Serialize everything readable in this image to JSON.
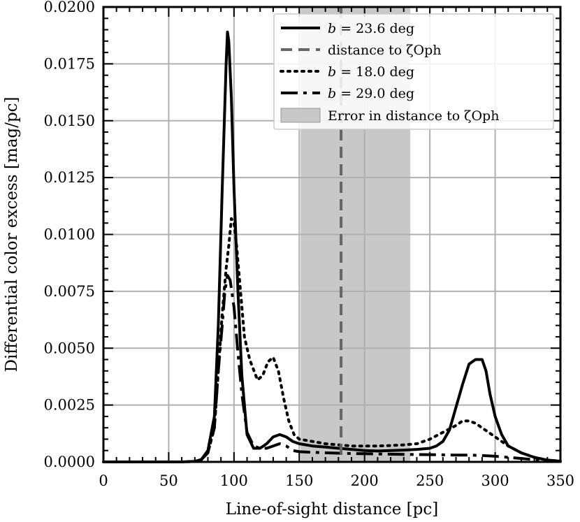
{
  "chart_data": {
    "type": "line",
    "xlabel": "Line-of-sight distance [pc]",
    "ylabel": "Differential color excess [mag/pc]",
    "xlim": [
      0,
      350
    ],
    "ylim": [
      0,
      0.02
    ],
    "xticks": [
      0,
      50,
      100,
      150,
      200,
      250,
      300,
      350
    ],
    "xtick_labels": [
      "0",
      "50",
      "100",
      "150",
      "200",
      "250",
      "300",
      "350"
    ],
    "yticks": [
      0,
      0.0025,
      0.005,
      0.0075,
      0.01,
      0.0125,
      0.015,
      0.0175,
      0.02
    ],
    "ytick_labels": [
      "0.0000",
      "0.0025",
      "0.0050",
      "0.0075",
      "0.0100",
      "0.0125",
      "0.0150",
      "0.0175",
      "0.0200"
    ],
    "grid": true,
    "legend_position": "top-right",
    "series": [
      {
        "name": "b = 23.6 deg",
        "legend": {
          "prefix": "b",
          "value": " = 23.6",
          "unit": " deg"
        },
        "style": "solid",
        "color": "#000000",
        "points": [
          [
            0,
            0
          ],
          [
            60,
            0
          ],
          [
            70,
            2e-05
          ],
          [
            75,
            0.0001
          ],
          [
            80,
            0.0005
          ],
          [
            85,
            0.002
          ],
          [
            88,
            0.006
          ],
          [
            91,
            0.012
          ],
          [
            94,
            0.0175
          ],
          [
            95,
            0.0189
          ],
          [
            96,
            0.0185
          ],
          [
            98,
            0.016
          ],
          [
            100,
            0.012
          ],
          [
            103,
            0.0075
          ],
          [
            106,
            0.0038
          ],
          [
            110,
            0.0012
          ],
          [
            115,
            0.0006
          ],
          [
            120,
            0.0006
          ],
          [
            125,
            0.0008
          ],
          [
            130,
            0.0011
          ],
          [
            135,
            0.0012
          ],
          [
            140,
            0.0011
          ],
          [
            145,
            0.0009
          ],
          [
            150,
            0.0008
          ],
          [
            160,
            0.0007
          ],
          [
            170,
            0.00065
          ],
          [
            180,
            0.0006
          ],
          [
            190,
            0.00055
          ],
          [
            200,
            0.0005
          ],
          [
            210,
            0.00048
          ],
          [
            220,
            0.0005
          ],
          [
            230,
            0.00052
          ],
          [
            240,
            0.00055
          ],
          [
            250,
            0.0006
          ],
          [
            255,
            0.0007
          ],
          [
            260,
            0.0009
          ],
          [
            265,
            0.0014
          ],
          [
            270,
            0.0024
          ],
          [
            275,
            0.0034
          ],
          [
            280,
            0.0043
          ],
          [
            285,
            0.0045
          ],
          [
            290,
            0.0045
          ],
          [
            293,
            0.004
          ],
          [
            296,
            0.003
          ],
          [
            300,
            0.002
          ],
          [
            305,
            0.0012
          ],
          [
            310,
            0.0007
          ],
          [
            320,
            0.0004
          ],
          [
            330,
            0.0002
          ],
          [
            340,
            8e-05
          ],
          [
            350,
            3e-05
          ]
        ]
      },
      {
        "name": "b = 18.0 deg",
        "legend": {
          "prefix": "b",
          "value": " = 18.0",
          "unit": " deg"
        },
        "style": "dotted",
        "color": "#000000",
        "points": [
          [
            0,
            0
          ],
          [
            60,
            0
          ],
          [
            70,
            2e-05
          ],
          [
            75,
            0.0001
          ],
          [
            80,
            0.0004
          ],
          [
            85,
            0.0015
          ],
          [
            88,
            0.004
          ],
          [
            91,
            0.0065
          ],
          [
            94,
            0.0085
          ],
          [
            96,
            0.0095
          ],
          [
            98,
            0.0107
          ],
          [
            100,
            0.0105
          ],
          [
            102,
            0.0095
          ],
          [
            105,
            0.0075
          ],
          [
            108,
            0.0055
          ],
          [
            112,
            0.0045
          ],
          [
            118,
            0.0036
          ],
          [
            122,
            0.0038
          ],
          [
            126,
            0.0044
          ],
          [
            130,
            0.0046
          ],
          [
            134,
            0.004
          ],
          [
            138,
            0.0028
          ],
          [
            142,
            0.0018
          ],
          [
            146,
            0.0012
          ],
          [
            150,
            0.001
          ],
          [
            160,
            0.0009
          ],
          [
            170,
            0.0008
          ],
          [
            180,
            0.00075
          ],
          [
            190,
            0.0007
          ],
          [
            200,
            0.0007
          ],
          [
            210,
            0.0007
          ],
          [
            220,
            0.00072
          ],
          [
            230,
            0.00075
          ],
          [
            240,
            0.0008
          ],
          [
            250,
            0.001
          ],
          [
            260,
            0.0013
          ],
          [
            270,
            0.0016
          ],
          [
            275,
            0.0018
          ],
          [
            280,
            0.0018
          ],
          [
            285,
            0.0017
          ],
          [
            290,
            0.0015
          ],
          [
            300,
            0.0011
          ],
          [
            310,
            0.0007
          ],
          [
            320,
            0.0004
          ],
          [
            330,
            0.0002
          ],
          [
            340,
            8e-05
          ],
          [
            350,
            3e-05
          ]
        ]
      },
      {
        "name": "b = 29.0 deg",
        "legend": {
          "prefix": "b",
          "value": " = 29.0",
          "unit": " deg"
        },
        "style": "dashdot",
        "color": "#000000",
        "points": [
          [
            0,
            0
          ],
          [
            60,
            0
          ],
          [
            70,
            2e-05
          ],
          [
            75,
            0.0001
          ],
          [
            80,
            0.0004
          ],
          [
            85,
            0.0015
          ],
          [
            88,
            0.004
          ],
          [
            91,
            0.006
          ],
          [
            93,
            0.0075
          ],
          [
            95,
            0.0082
          ],
          [
            97,
            0.008
          ],
          [
            100,
            0.0068
          ],
          [
            103,
            0.0048
          ],
          [
            106,
            0.003
          ],
          [
            110,
            0.0013
          ],
          [
            115,
            0.0007
          ],
          [
            120,
            0.0006
          ],
          [
            125,
            0.0006
          ],
          [
            130,
            0.0007
          ],
          [
            135,
            0.0008
          ],
          [
            140,
            0.0007
          ],
          [
            145,
            0.0005
          ],
          [
            150,
            0.00045
          ],
          [
            170,
            0.0004
          ],
          [
            190,
            0.00037
          ],
          [
            210,
            0.00035
          ],
          [
            230,
            0.00033
          ],
          [
            250,
            0.00032
          ],
          [
            270,
            0.0003
          ],
          [
            280,
            0.0003
          ],
          [
            290,
            0.00028
          ],
          [
            300,
            0.00025
          ],
          [
            310,
            0.0002
          ],
          [
            320,
            0.00015
          ],
          [
            330,
            0.0001
          ],
          [
            340,
            5e-05
          ],
          [
            350,
            2e-05
          ]
        ]
      }
    ],
    "vline": {
      "name": "distance to ζOph",
      "legend_text": "distance to ζOph",
      "x": 182,
      "style": "dashed",
      "color": "#666666"
    },
    "band": {
      "name": "Error in distance to ζOph",
      "legend_text": "Error in distance to ζOph",
      "x_range": [
        151,
        235
      ],
      "color": "#c8c8c8"
    }
  }
}
